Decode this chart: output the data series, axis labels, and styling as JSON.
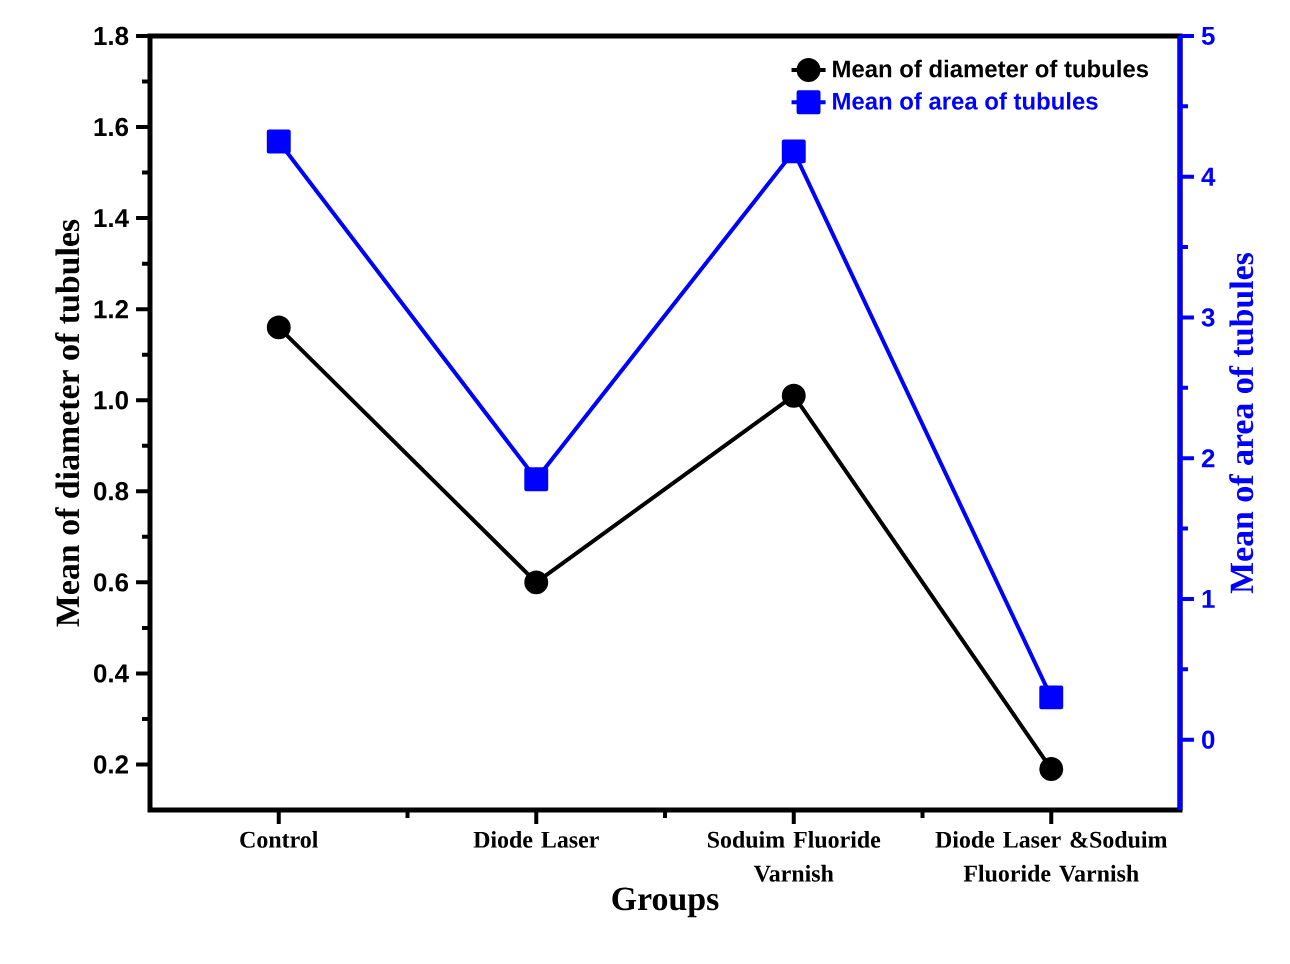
{
  "chart_data": {
    "type": "line",
    "xlabel": "Groups",
    "ylabel": "Mean of diameter of tubules",
    "y2label": "Mean of area of tubules",
    "categories": [
      "Control",
      "Diode Laser",
      "Soduim Fluoride Varnish",
      "Diode Laser &Soduim Fluoride Varnish"
    ],
    "series": [
      {
        "name": "Mean of diameter of tubules",
        "color": "#000000",
        "marker": "circle",
        "values": [
          1.16,
          0.6,
          1.01,
          0.19
        ]
      },
      {
        "name": "Mean of area of tubules",
        "color": "#0000ff",
        "marker": "square",
        "axis": "y2",
        "values": [
          4.25,
          1.85,
          4.18,
          0.3
        ]
      }
    ],
    "ylim": [
      0.1,
      1.8
    ],
    "yticks": [
      0.2,
      0.4,
      0.6,
      0.8,
      {
        "value": 1,
        "label": "1.0"
      },
      1.2,
      1.4,
      1.6,
      1.8
    ],
    "y2lim": [
      -0.5,
      5
    ],
    "y2ticks": [
      0,
      1,
      2,
      3,
      4,
      5
    ],
    "legend": "top right",
    "grid": false,
    "line_style": "solid"
  }
}
